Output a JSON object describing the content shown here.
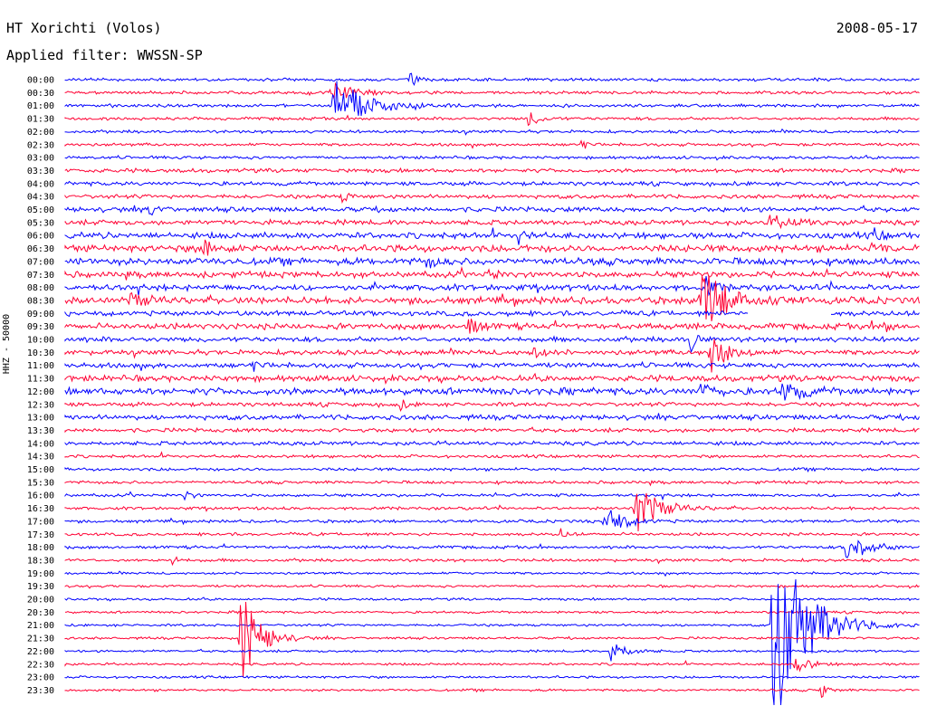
{
  "header": {
    "station": "HT Xorichti (Volos)",
    "date": "2008-05-17",
    "filter": "Applied filter: WWSSN-SP"
  },
  "chart_data": {
    "type": "line",
    "ylabel": "HHZ - 50000",
    "colors": [
      "#0000ff",
      "#ff0033"
    ],
    "trace_times": [
      "00:00",
      "00:30",
      "01:00",
      "01:30",
      "02:00",
      "02:30",
      "03:00",
      "03:30",
      "04:00",
      "04:30",
      "05:00",
      "05:30",
      "06:00",
      "06:30",
      "07:00",
      "07:30",
      "08:00",
      "08:30",
      "09:00",
      "09:30",
      "10:00",
      "10:30",
      "11:00",
      "11:30",
      "12:00",
      "12:30",
      "13:00",
      "13:30",
      "14:00",
      "14:30",
      "15:00",
      "15:30",
      "16:00",
      "16:30",
      "17:00",
      "17:30",
      "18:00",
      "18:30",
      "19:00",
      "19:30",
      "20:00",
      "20:30",
      "21:00",
      "21:30",
      "22:00",
      "22:30",
      "23:00",
      "23:30"
    ],
    "noise_level": [
      1.5,
      1.5,
      1.5,
      1.5,
      1.5,
      1.5,
      1.5,
      2.0,
      2.0,
      2.0,
      2.5,
      2.5,
      3.0,
      3.5,
      3.5,
      3.0,
      3.0,
      3.5,
      2.5,
      3.0,
      2.5,
      2.5,
      2.5,
      3.0,
      3.5,
      2.0,
      2.5,
      2.0,
      2.0,
      1.5,
      1.5,
      1.5,
      1.5,
      1.5,
      1.5,
      1.5,
      1.5,
      1.5,
      1.2,
      1.2,
      1.2,
      1.2,
      1.2,
      1.2,
      1.2,
      1.2,
      1.2,
      1.2
    ]
  }
}
